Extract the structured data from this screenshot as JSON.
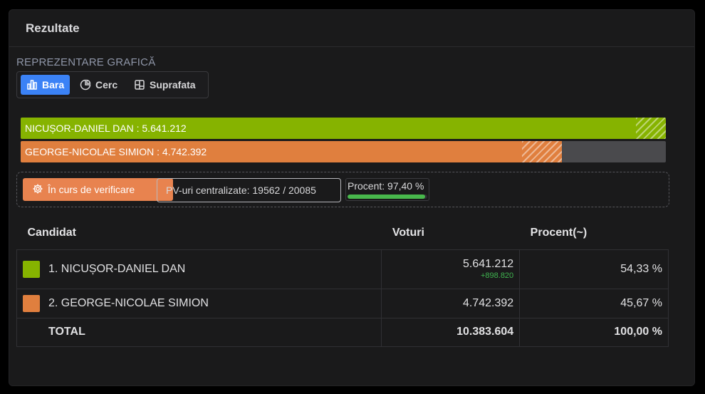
{
  "panel": {
    "title": "Rezultate"
  },
  "section_label": "REPREZENTARE GRAFICĂ",
  "view_toggle": {
    "options": [
      {
        "label": "Bara",
        "icon": "bar-chart-icon",
        "active": true
      },
      {
        "label": "Cerc",
        "icon": "pie-chart-icon",
        "active": false
      },
      {
        "label": "Suprafata",
        "icon": "treemap-icon",
        "active": false
      }
    ]
  },
  "bars": [
    {
      "label": "NICUȘOR-DANIEL DAN : 5.641.212",
      "share": 0.9535,
      "projected_share": 1.0,
      "color": "#86b300"
    },
    {
      "label": "GEORGE-NICOLAE SIMION : 4.742.392",
      "share": 0.777,
      "projected_share": 0.839,
      "color": "#e07f3e"
    }
  ],
  "status": {
    "verify_label": "În curs de verificare",
    "verify_icon": "gear-icon",
    "pv_label": "PV-uri centralizate: 19562 / 20085",
    "percent_label": "Procent: 97,40 %",
    "percent_value": 97.4,
    "progress_color": "#48b84c"
  },
  "table": {
    "headers": {
      "candidate": "Candidat",
      "votes": "Voturi",
      "percent": "Procent(~)"
    },
    "rows": [
      {
        "name": "1. NICUȘOR-DANIEL DAN",
        "votes": "5.641.212",
        "diff": "+898.820",
        "percent": "54,33 %",
        "color": "#86b300"
      },
      {
        "name": "2. GEORGE-NICOLAE SIMION",
        "votes": "4.742.392",
        "diff": "",
        "percent": "45,67 %",
        "color": "#e07f3e"
      }
    ],
    "total": {
      "label": "TOTAL",
      "votes": "10.383.604",
      "percent": "100,00 %"
    }
  }
}
